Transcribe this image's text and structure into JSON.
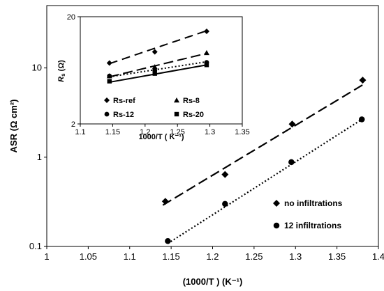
{
  "chart_data": [
    {
      "type": "scatter",
      "scale": "log-y",
      "xlabel": "(1000/T ) (K⁻¹)",
      "ylabel": "ASR (Ω cm²)",
      "xlim": [
        1,
        1.4
      ],
      "ylim": [
        0.1,
        50
      ],
      "x_ticks": [
        "1",
        "1.05",
        "1.1",
        "1.15",
        "1.2",
        "1.25",
        "1.3",
        "1.35",
        "1.4"
      ],
      "y_ticks": [
        "0.1",
        "1",
        "10"
      ],
      "legend_position": "bottom-right",
      "series": [
        {
          "name": "no infiltrations",
          "marker": "diamond",
          "line": "dashed",
          "x": [
            1.143,
            1.215,
            1.296,
            1.381
          ],
          "y": [
            0.32,
            0.64,
            2.35,
            7.3
          ],
          "fit": {
            "x": [
              1.14,
              1.385
            ],
            "y": [
              0.29,
              6.8
            ]
          }
        },
        {
          "name": "12 infiltrations",
          "marker": "circle",
          "line": "dotted",
          "x": [
            1.146,
            1.215,
            1.295,
            1.38
          ],
          "y": [
            0.115,
            0.3,
            0.88,
            2.65
          ],
          "fit": {
            "x": [
              1.146,
              1.38
            ],
            "y": [
              0.108,
              2.65
            ]
          }
        }
      ]
    },
    {
      "type": "scatter",
      "inset": true,
      "scale": "log-y",
      "xlabel": "1000/T ( K⁻¹)",
      "ylabel_main": "R",
      "ylabel_sub": "s",
      "ylabel_unit": " (Ω)",
      "xlim": [
        1.1,
        1.35
      ],
      "ylim": [
        2,
        20
      ],
      "x_ticks": [
        "1.1",
        "1.15",
        "1.2",
        "1.25",
        "1.3",
        "1.35"
      ],
      "y_ticks": [
        "2",
        "20"
      ],
      "series": [
        {
          "name": "Rs-ref",
          "marker": "diamond",
          "line": "longdash",
          "x": [
            1.145,
            1.215,
            1.295
          ],
          "y": [
            7.4,
            9.4,
            14.6
          ],
          "fit": {
            "x": [
              1.145,
              1.295
            ],
            "y": [
              7.3,
              14.8
            ]
          }
        },
        {
          "name": "Rs-8",
          "marker": "triangle",
          "line": "dashed",
          "x": [
            1.145,
            1.215,
            1.295
          ],
          "y": [
            5.6,
            6.8,
            9.2
          ],
          "fit": {
            "x": [
              1.145,
              1.295
            ],
            "y": [
              5.5,
              9.1
            ]
          }
        },
        {
          "name": "Rs-12",
          "marker": "circle",
          "line": "dotted",
          "x": [
            1.145,
            1.215,
            1.295
          ],
          "y": [
            5.6,
            6.3,
            7.5
          ],
          "fit": {
            "x": [
              1.145,
              1.295
            ],
            "y": [
              5.5,
              7.6
            ]
          }
        },
        {
          "name": "Rs-20",
          "marker": "square",
          "line": "solid",
          "x": [
            1.145,
            1.215,
            1.295
          ],
          "y": [
            5.0,
            5.9,
            7.1
          ],
          "fit": {
            "x": [
              1.145,
              1.295
            ],
            "y": [
              4.9,
              7.1
            ]
          }
        }
      ]
    }
  ]
}
